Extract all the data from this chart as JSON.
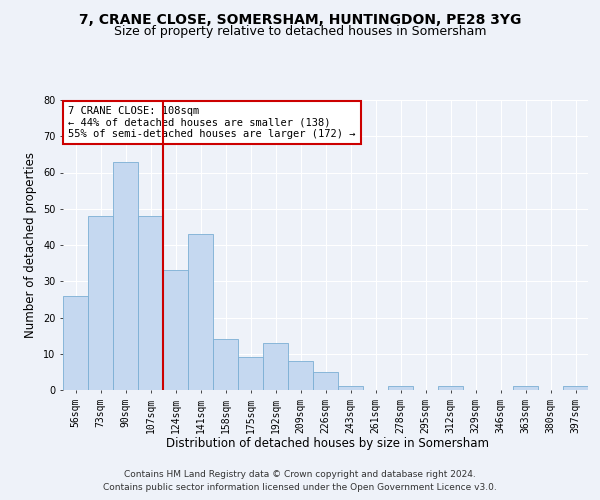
{
  "title": "7, CRANE CLOSE, SOMERSHAM, HUNTINGDON, PE28 3YG",
  "subtitle": "Size of property relative to detached houses in Somersham",
  "xlabel": "Distribution of detached houses by size in Somersham",
  "ylabel": "Number of detached properties",
  "categories": [
    "56sqm",
    "73sqm",
    "90sqm",
    "107sqm",
    "124sqm",
    "141sqm",
    "158sqm",
    "175sqm",
    "192sqm",
    "209sqm",
    "226sqm",
    "243sqm",
    "261sqm",
    "278sqm",
    "295sqm",
    "312sqm",
    "329sqm",
    "346sqm",
    "363sqm",
    "380sqm",
    "397sqm"
  ],
  "values": [
    26,
    48,
    63,
    48,
    33,
    43,
    14,
    9,
    13,
    8,
    5,
    1,
    0,
    1,
    0,
    1,
    0,
    0,
    1,
    0,
    1
  ],
  "bar_color": "#c5d8f0",
  "bar_edge_color": "#7bafd4",
  "vline_x_index": 3,
  "vline_color": "#cc0000",
  "ylim": [
    0,
    80
  ],
  "yticks": [
    0,
    10,
    20,
    30,
    40,
    50,
    60,
    70,
    80
  ],
  "annotation_text": "7 CRANE CLOSE: 108sqm\n← 44% of detached houses are smaller (138)\n55% of semi-detached houses are larger (172) →",
  "annotation_box_color": "#ffffff",
  "annotation_box_edge": "#cc0000",
  "footer_line1": "Contains HM Land Registry data © Crown copyright and database right 2024.",
  "footer_line2": "Contains public sector information licensed under the Open Government Licence v3.0.",
  "background_color": "#eef2f9",
  "grid_color": "#ffffff",
  "title_fontsize": 10,
  "subtitle_fontsize": 9,
  "axis_label_fontsize": 8.5,
  "tick_fontsize": 7,
  "footer_fontsize": 6.5,
  "annotation_fontsize": 7.5
}
